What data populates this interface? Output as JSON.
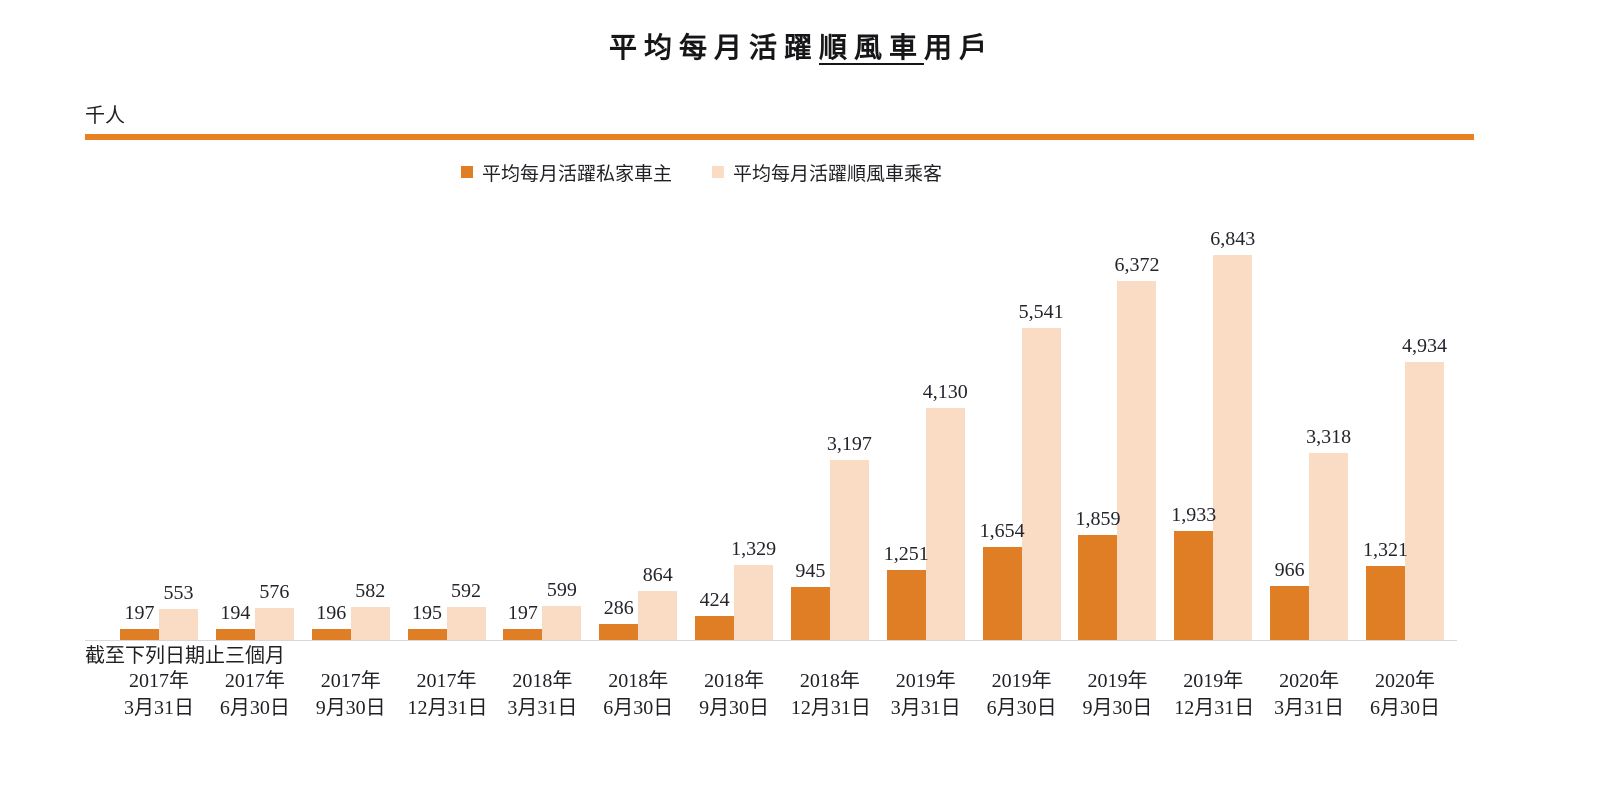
{
  "title": {
    "prefix": "平均每月活躍",
    "underlined": "順風車",
    "suffix": "用戶"
  },
  "unit_label": "千人",
  "axis_note": "截至下列日期止三個月",
  "colors": {
    "owners_bar": "#e07e26",
    "passengers_bar": "#fadcc5",
    "divider_rule": "#e8811f",
    "baseline": "#d8d8d8",
    "text": "#1f2024"
  },
  "legend": {
    "items": [
      {
        "label": "平均每月活躍私家車主",
        "color": "#e07e26"
      },
      {
        "label": "平均每月活躍順風車乘客",
        "color": "#fadcc5"
      }
    ],
    "position": "top-center"
  },
  "chart_data": {
    "type": "bar",
    "title": "平均每月活躍順風車用戶",
    "ylabel": "千人",
    "xlabel": "截至下列日期止三個月",
    "grid": false,
    "value_labels": true,
    "ylim": [
      0,
      6843
    ],
    "categories": [
      {
        "year": "2017年",
        "date": "3月31日"
      },
      {
        "year": "2017年",
        "date": "6月30日"
      },
      {
        "year": "2017年",
        "date": "9月30日"
      },
      {
        "year": "2017年",
        "date": "12月31日"
      },
      {
        "year": "2018年",
        "date": "3月31日"
      },
      {
        "year": "2018年",
        "date": "6月30日"
      },
      {
        "year": "2018年",
        "date": "9月30日"
      },
      {
        "year": "2018年",
        "date": "12月31日"
      },
      {
        "year": "2019年",
        "date": "3月31日"
      },
      {
        "year": "2019年",
        "date": "6月30日"
      },
      {
        "year": "2019年",
        "date": "9月30日"
      },
      {
        "year": "2019年",
        "date": "12月31日"
      },
      {
        "year": "2020年",
        "date": "3月31日"
      },
      {
        "year": "2020年",
        "date": "6月30日"
      }
    ],
    "series": [
      {
        "name": "平均每月活躍私家車主",
        "color": "#e07e26",
        "values": [
          197,
          194,
          196,
          195,
          197,
          286,
          424,
          945,
          1251,
          1654,
          1859,
          1933,
          966,
          1321
        ]
      },
      {
        "name": "平均每月活躍順風車乘客",
        "color": "#fadcc5",
        "values": [
          553,
          576,
          582,
          592,
          599,
          864,
          1329,
          3197,
          4130,
          5541,
          6372,
          6843,
          3318,
          4934
        ]
      }
    ]
  }
}
